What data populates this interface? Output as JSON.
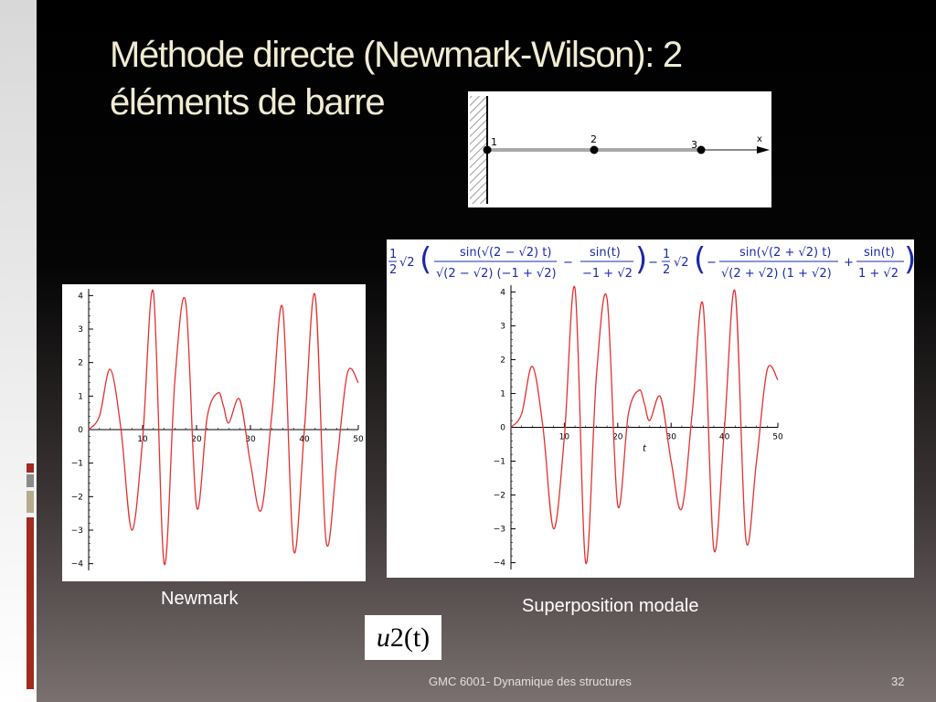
{
  "slide": {
    "title_line1": "Méthode directe  (Newmark-Wilson): 2",
    "title_line2": "éléments de barre",
    "footer_course": "GMC 6001-  Dynamique des structures",
    "page_number": "32",
    "caption_left": "Newmark",
    "caption_right": "Superposition modale",
    "u2_var": "u",
    "u2_sub": "2",
    "u2_arg": "(t)"
  },
  "diagram": {
    "node_labels": [
      "1",
      "2",
      "3"
    ],
    "axis_label": "x"
  },
  "formula": {
    "half": "1",
    "half_den": "2",
    "sqrt2": "√2",
    "t1_num": "sin(√(2 − √2) t)",
    "t1_den": "√(2 − √2) (−1 + √2)",
    "t2_num": "sin(t)",
    "t2_den": "−1 + √2",
    "t3_num": "sin(√(2 + √2) t)",
    "t3_den": "√(2 + √2) (1 + √2)",
    "t4_num": "sin(t)",
    "t4_den": "1 + √2",
    "minus": "−",
    "plus": "+"
  },
  "chart_data": [
    {
      "type": "line",
      "title": "",
      "xlabel": "",
      "ylabel": "",
      "xlim": [
        0,
        50
      ],
      "ylim": [
        -4.2,
        4.2
      ],
      "x_ticks": [
        10,
        20,
        30,
        40,
        50
      ],
      "y_ticks": [
        4,
        3,
        2,
        1,
        0,
        -1,
        -2,
        -3,
        -4
      ],
      "line_color": "#e53030",
      "series": [
        {
          "name": "",
          "x": [
            0,
            2,
            4,
            6,
            8,
            10,
            12,
            14,
            16,
            18,
            20,
            22,
            24,
            25,
            26,
            28,
            30,
            32,
            34,
            36,
            38,
            40,
            42,
            44,
            46,
            48,
            50
          ],
          "values": [
            0,
            0.4,
            1.8,
            0.0,
            -3.0,
            -0.3,
            4.1,
            -4.0,
            1.5,
            3.8,
            -2.3,
            0.4,
            1.1,
            0.7,
            0.2,
            0.9,
            -1.0,
            -2.4,
            0.5,
            3.6,
            -3.6,
            0.0,
            4.0,
            -3.3,
            -1.0,
            1.7,
            1.4
          ]
        }
      ]
    },
    {
      "type": "line",
      "title": "",
      "xlabel": "t",
      "ylabel": "",
      "xlim": [
        0,
        50
      ],
      "ylim": [
        -4.2,
        4.2
      ],
      "x_ticks": [
        10,
        20,
        30,
        40,
        50
      ],
      "y_ticks": [
        4,
        3,
        2,
        1,
        0,
        -1,
        -2,
        -3,
        -4
      ],
      "line_color": "#e53030",
      "series": [
        {
          "name": "",
          "x": [
            0,
            2,
            4,
            6,
            8,
            10,
            12,
            14,
            16,
            18,
            20,
            22,
            24,
            25,
            26,
            28,
            30,
            32,
            34,
            36,
            38,
            40,
            42,
            44,
            46,
            48,
            50
          ],
          "values": [
            0,
            0.4,
            1.8,
            0.0,
            -3.0,
            -0.3,
            4.1,
            -4.0,
            1.5,
            3.8,
            -2.3,
            0.4,
            1.1,
            0.7,
            0.2,
            0.9,
            -1.0,
            -2.4,
            0.5,
            3.6,
            -3.6,
            0.0,
            4.0,
            -3.3,
            -1.0,
            1.7,
            1.4
          ]
        }
      ]
    }
  ]
}
